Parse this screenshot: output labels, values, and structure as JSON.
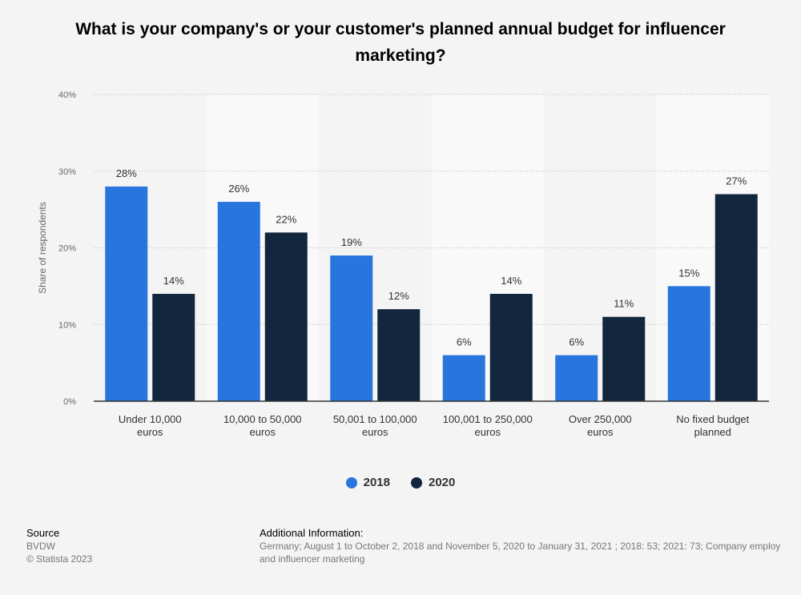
{
  "title": "What is your company's or your customer's planned annual budget for influencer marketing?",
  "chart_data": {
    "type": "bar",
    "categories": [
      [
        "Under 10,000",
        "euros"
      ],
      [
        "10,000 to 50,000",
        "euros"
      ],
      [
        "50,001 to 100,000",
        "euros"
      ],
      [
        "100,001 to 250,000",
        "euros"
      ],
      [
        "Over 250,000",
        "euros"
      ],
      [
        "No fixed budget",
        "planned"
      ]
    ],
    "series": [
      {
        "name": "2018",
        "values": [
          28,
          26,
          19,
          6,
          6,
          15
        ],
        "color": "#2876dd"
      },
      {
        "name": "2020",
        "values": [
          14,
          22,
          12,
          14,
          11,
          27
        ],
        "color": "#12263d"
      }
    ],
    "ylabel": "Share of respondents",
    "ylim": [
      0,
      40
    ],
    "yticks": [
      "0%",
      "10%",
      "20%",
      "30%",
      "40%"
    ],
    "value_suffix": "%",
    "grid": true,
    "legend": "bottom-center"
  },
  "footer": {
    "source_heading": "Source",
    "source_lines": [
      "BVDW",
      "© Statista 2023"
    ],
    "info_heading": "Additional Information:",
    "info_lines": [
      "Germany; August 1 to October 2, 2018 and November 5, 2020 to January 31, 2021 ; 2018: 53; 2021: 73; Company employ",
      "and influencer marketing"
    ]
  }
}
